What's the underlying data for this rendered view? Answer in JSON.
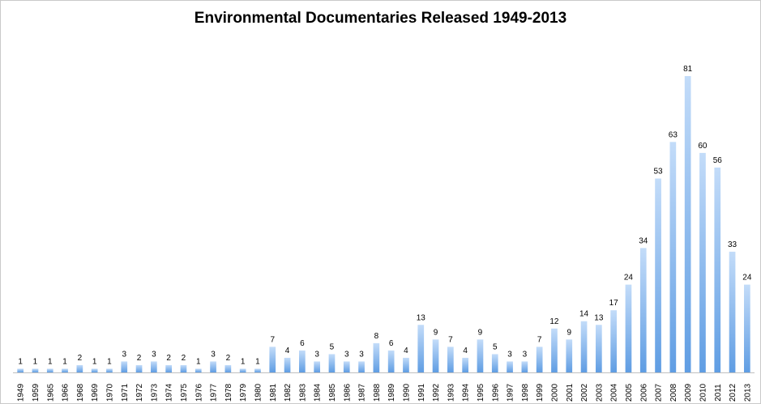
{
  "chart_data": {
    "type": "bar",
    "title": "Environmental Documentaries Released 1949-2013",
    "xlabel": "",
    "ylabel": "",
    "ylim": [
      0,
      81
    ],
    "grid": false,
    "legend": "none",
    "bar_color": "#8ab8ec",
    "categories": [
      "1949",
      "1959",
      "1965",
      "1966",
      "1968",
      "1969",
      "1970",
      "1971",
      "1972",
      "1973",
      "1974",
      "1975",
      "1976",
      "1977",
      "1978",
      "1979",
      "1980",
      "1981",
      "1982",
      "1983",
      "1984",
      "1985",
      "1986",
      "1987",
      "1988",
      "1989",
      "1990",
      "1991",
      "1992",
      "1993",
      "1994",
      "1995",
      "1996",
      "1997",
      "1998",
      "1999",
      "2000",
      "2001",
      "2002",
      "2003",
      "2004",
      "2005",
      "2006",
      "2007",
      "2008",
      "2009",
      "2010",
      "2011",
      "2012",
      "2013"
    ],
    "values": [
      1,
      1,
      1,
      1,
      2,
      1,
      1,
      3,
      2,
      3,
      2,
      2,
      1,
      3,
      2,
      1,
      1,
      7,
      4,
      6,
      3,
      5,
      3,
      3,
      8,
      6,
      4,
      13,
      9,
      7,
      4,
      9,
      5,
      3,
      3,
      7,
      12,
      9,
      14,
      13,
      17,
      24,
      34,
      53,
      63,
      81,
      60,
      56,
      33,
      24
    ]
  }
}
